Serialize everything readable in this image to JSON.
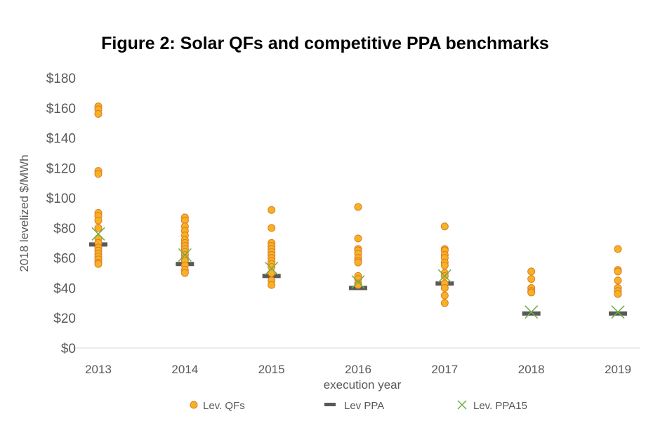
{
  "chart_data": {
    "type": "scatter",
    "title": "Figure 2: Solar QFs and competitive PPA benchmarks",
    "xlabel": "execution year",
    "ylabel": "2018 levelized $/MWh",
    "categories": [
      "2013",
      "2014",
      "2015",
      "2016",
      "2017",
      "2018",
      "2019"
    ],
    "yticks": [
      "$0",
      "$20",
      "$40",
      "$60",
      "$80",
      "$100",
      "$120",
      "$140",
      "$160",
      "$180"
    ],
    "ylim": [
      0,
      180
    ],
    "grid": false,
    "legend_position": "bottom",
    "series": [
      {
        "name": "Lev. QFs",
        "marker": "circle",
        "color": "#F5B324",
        "edge": "#E07B28",
        "values": [
          [
            161,
            159,
            156,
            118,
            116,
            90,
            88,
            85,
            80,
            73,
            70,
            67,
            65,
            63,
            61,
            59,
            57,
            56
          ],
          [
            87,
            85,
            81,
            78,
            75,
            72,
            70,
            68,
            66,
            64,
            62,
            60,
            58,
            55,
            52,
            50
          ],
          [
            92,
            80,
            70,
            68,
            66,
            64,
            62,
            60,
            58,
            56,
            54,
            50,
            45,
            42
          ],
          [
            94,
            73,
            66,
            65,
            63,
            60,
            58,
            57,
            48,
            46,
            43,
            42
          ],
          [
            81,
            66,
            65,
            62,
            60,
            57,
            55,
            50,
            48,
            43,
            40,
            35,
            30
          ],
          [
            51,
            46,
            40,
            38,
            37
          ],
          [
            66,
            52,
            51,
            45,
            40,
            38,
            36
          ]
        ]
      },
      {
        "name": "Lev PPA",
        "marker": "dash",
        "color": "#595959",
        "values": [
          69,
          56,
          48,
          40,
          43,
          23,
          23
        ]
      },
      {
        "name": "Lev. PPA15",
        "marker": "x",
        "color": "#70AD47",
        "values": [
          76,
          62,
          53,
          44,
          48,
          24,
          24
        ]
      }
    ]
  }
}
